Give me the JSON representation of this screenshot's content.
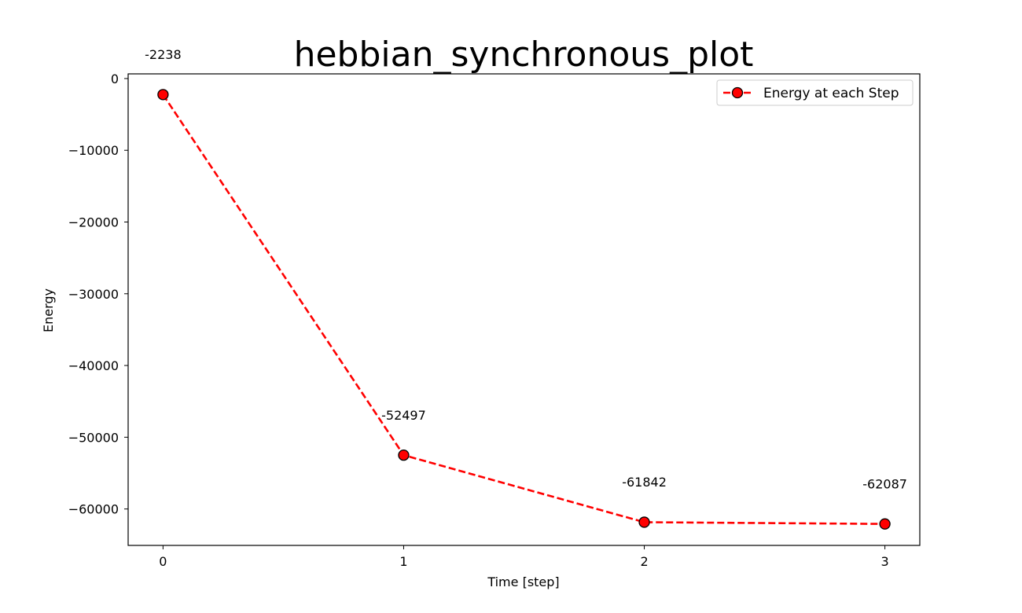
{
  "chart_data": {
    "type": "line",
    "title": "hebbian_synchronous_plot",
    "xlabel": "Time [step]",
    "ylabel": "Energy",
    "x": [
      0,
      1,
      2,
      3
    ],
    "series": [
      {
        "name": "Energy at each Step",
        "values": [
          -2238,
          -52497,
          -61842,
          -62087
        ],
        "color": "#ff0000",
        "marker_face": "#ff0000",
        "marker_edge": "#000000",
        "linestyle": "dashed"
      }
    ],
    "data_labels": [
      "-2238",
      "-52497",
      "-61842",
      "-62087"
    ],
    "xlim": [
      -0.145,
      3.145
    ],
    "ylim": [
      -65080,
      650
    ],
    "xticks": [
      0,
      1,
      2,
      3
    ],
    "xtick_labels": [
      "0",
      "1",
      "2",
      "3"
    ],
    "yticks": [
      0,
      -10000,
      -20000,
      -30000,
      -40000,
      -50000,
      -60000
    ],
    "ytick_labels": [
      "0",
      "−10000",
      "−20000",
      "−30000",
      "−40000",
      "−50000",
      "−60000"
    ],
    "grid": false,
    "legend_position": "upper right"
  }
}
